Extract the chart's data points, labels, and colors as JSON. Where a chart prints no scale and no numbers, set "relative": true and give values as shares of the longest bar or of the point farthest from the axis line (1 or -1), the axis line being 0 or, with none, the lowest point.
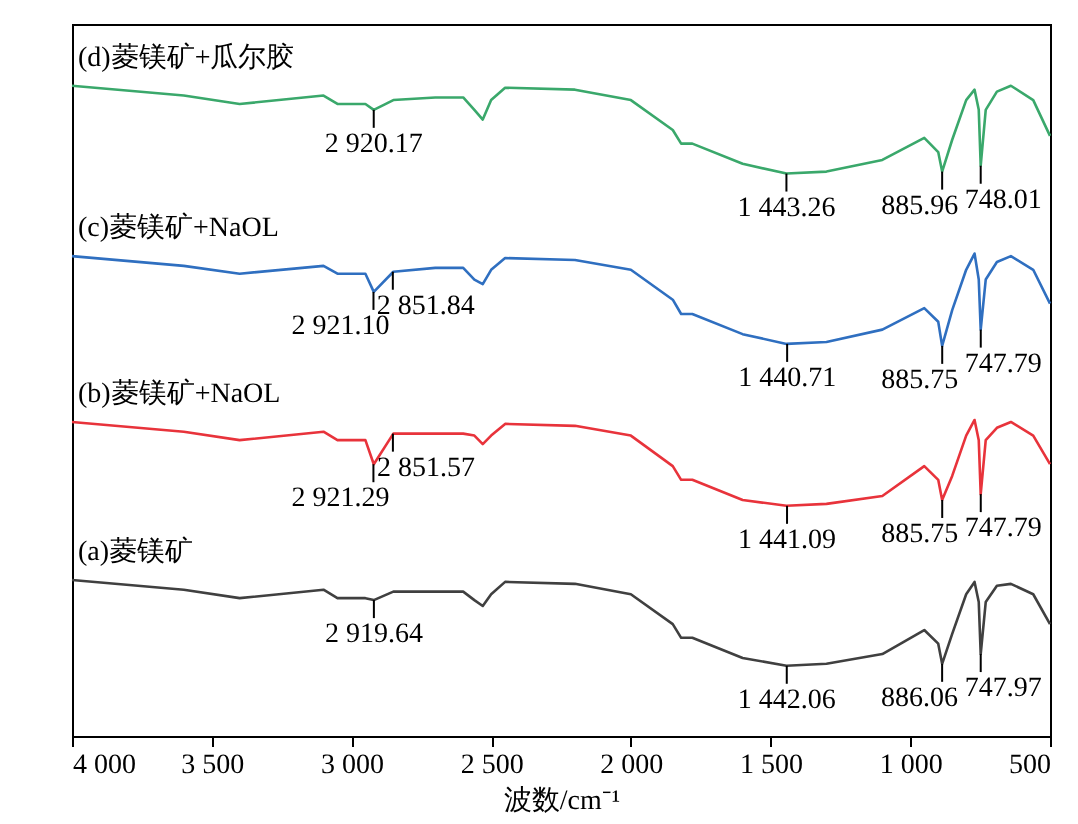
{
  "chart_data": {
    "type": "line",
    "relative": true,
    "xlabel": "波数/cm⁻¹",
    "xlim": [
      4000,
      500
    ],
    "xticks": [
      {
        "value": 4000,
        "label": "4 000"
      },
      {
        "value": 3500,
        "label": "3 500"
      },
      {
        "value": 3000,
        "label": "3 000"
      },
      {
        "value": 2500,
        "label": "2 500"
      },
      {
        "value": 2000,
        "label": "2 000"
      },
      {
        "value": 1500,
        "label": "1 500"
      },
      {
        "value": 1000,
        "label": "1 000"
      },
      {
        "value": 500,
        "label": "500"
      }
    ],
    "tick_labels": "x",
    "grid": false,
    "legend": false,
    "marker": "none",
    "line_style": "solid",
    "x": [
      4000,
      3600,
      3400,
      3100,
      3050,
      2950,
      2920,
      2850,
      2700,
      2600,
      2560,
      2530,
      2500,
      2450,
      2200,
      2000,
      1850,
      1820,
      1780,
      1600,
      1443,
      1300,
      1100,
      950,
      900,
      886,
      850,
      800,
      770,
      755,
      748,
      730,
      690,
      640,
      560,
      500
    ],
    "series": [
      {
        "name": "(d)菱镁矿+瓜尔胶",
        "color": "#3aa86b",
        "values": [
          1.0,
          0.985,
          0.972,
          0.985,
          0.972,
          0.972,
          0.963,
          0.978,
          0.982,
          0.982,
          0.963,
          0.948,
          0.978,
          0.997,
          0.994,
          0.978,
          0.932,
          0.911,
          0.911,
          0.88,
          0.865,
          0.868,
          0.886,
          0.92,
          0.898,
          0.868,
          0.917,
          0.978,
          0.994,
          0.963,
          0.877,
          0.963,
          0.991,
          1.0,
          0.978,
          0.923
        ]
      },
      {
        "name": "(c)菱镁矿+NaOL",
        "color": "#2f6fc0",
        "values": [
          0.738,
          0.723,
          0.711,
          0.723,
          0.711,
          0.711,
          0.683,
          0.714,
          0.72,
          0.72,
          0.702,
          0.695,
          0.717,
          0.735,
          0.732,
          0.717,
          0.671,
          0.649,
          0.649,
          0.618,
          0.603,
          0.606,
          0.625,
          0.658,
          0.637,
          0.6,
          0.655,
          0.717,
          0.742,
          0.702,
          0.625,
          0.702,
          0.729,
          0.738,
          0.717,
          0.665
        ]
      },
      {
        "name": "(b)菱镁矿+NaOL",
        "color": "#e8333b",
        "values": [
          0.483,
          0.468,
          0.455,
          0.468,
          0.455,
          0.455,
          0.418,
          0.465,
          0.465,
          0.465,
          0.462,
          0.449,
          0.462,
          0.48,
          0.477,
          0.462,
          0.415,
          0.394,
          0.394,
          0.363,
          0.354,
          0.357,
          0.369,
          0.415,
          0.394,
          0.363,
          0.4,
          0.462,
          0.486,
          0.455,
          0.372,
          0.455,
          0.474,
          0.483,
          0.462,
          0.418
        ]
      },
      {
        "name": "(a)菱镁矿",
        "color": "#404040",
        "values": [
          0.24,
          0.225,
          0.212,
          0.225,
          0.212,
          0.212,
          0.209,
          0.222,
          0.222,
          0.222,
          0.209,
          0.2,
          0.218,
          0.237,
          0.234,
          0.218,
          0.172,
          0.151,
          0.151,
          0.12,
          0.108,
          0.111,
          0.126,
          0.163,
          0.142,
          0.111,
          0.157,
          0.218,
          0.237,
          0.206,
          0.126,
          0.206,
          0.231,
          0.234,
          0.218,
          0.172
        ]
      }
    ],
    "annotations": [
      {
        "text": "2 920.17",
        "x": 2920.17,
        "y": 0.963
      },
      {
        "text": "1 443.26",
        "x": 1443.26,
        "y": 0.865
      },
      {
        "text": "885.96",
        "x": 885.96,
        "y": 0.868
      },
      {
        "text": "748.01",
        "x": 748.01,
        "y": 0.877
      },
      {
        "text": "2 921.10",
        "x": 2921.1,
        "y": 0.683
      },
      {
        "text": "2 851.84",
        "x": 2851.84,
        "y": 0.714
      },
      {
        "text": "1 440.71",
        "x": 1440.71,
        "y": 0.603
      },
      {
        "text": "885.75",
        "x": 885.75,
        "y": 0.6
      },
      {
        "text": "747.79",
        "x": 747.79,
        "y": 0.625
      },
      {
        "text": "2 921.29",
        "x": 2921.29,
        "y": 0.418
      },
      {
        "text": "2 851.57",
        "x": 2851.57,
        "y": 0.465
      },
      {
        "text": "1 441.09",
        "x": 1441.09,
        "y": 0.354
      },
      {
        "text": "885.75",
        "x": 885.75,
        "y": 0.363
      },
      {
        "text": "747.79",
        "x": 747.79,
        "y": 0.372
      },
      {
        "text": "2 919.64",
        "x": 2919.64,
        "y": 0.209
      },
      {
        "text": "1 442.06",
        "x": 1442.06,
        "y": 0.108
      },
      {
        "text": "886.06",
        "x": 886.06,
        "y": 0.111
      },
      {
        "text": "747.97",
        "x": 747.97,
        "y": 0.126
      }
    ]
  }
}
